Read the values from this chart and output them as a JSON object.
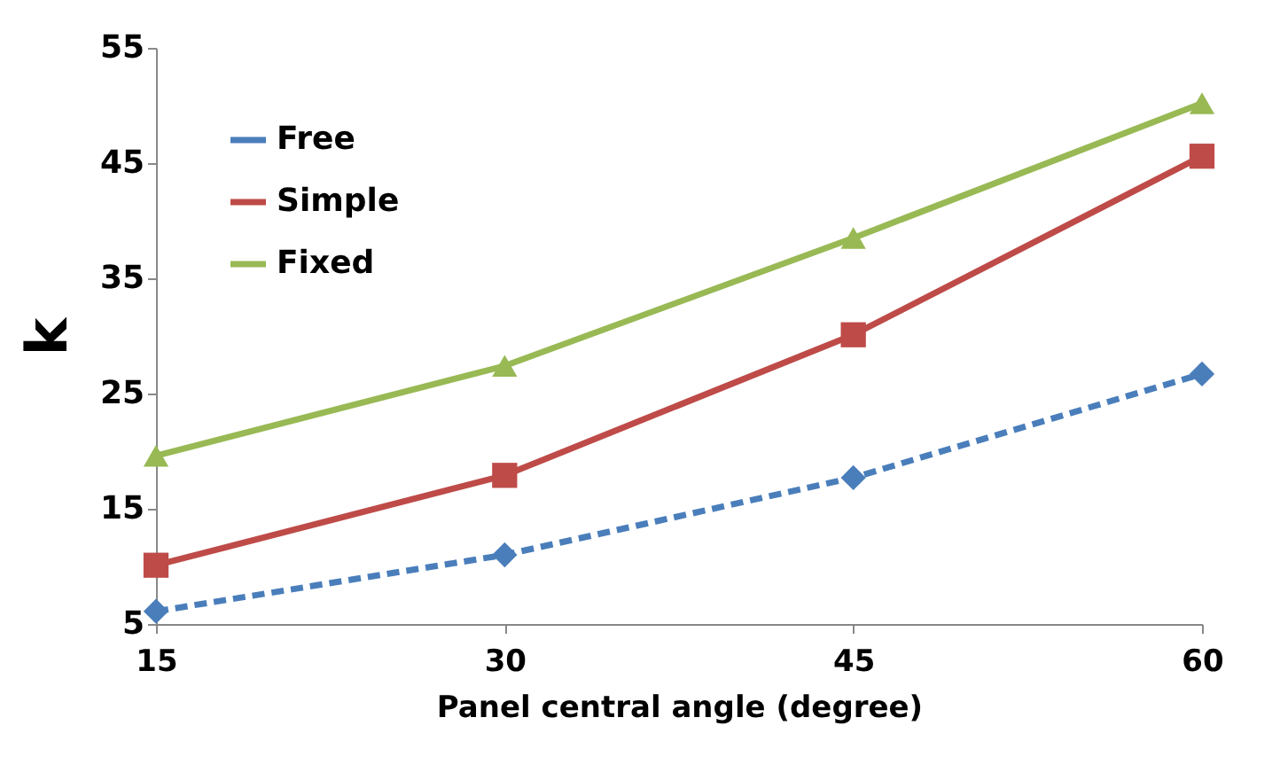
{
  "chart_data": {
    "type": "line",
    "xlabel": "Panel central angle (degree)",
    "ylabel": "k",
    "x": [
      15,
      30,
      45,
      60
    ],
    "series": [
      {
        "name": "Free",
        "color": "#4a7ebb",
        "values": [
          6.1,
          11.0,
          17.7,
          26.7
        ],
        "marker": "diamond",
        "line_style": "dashed"
      },
      {
        "name": "Simple",
        "color": "#be4b48",
        "values": [
          10.1,
          17.9,
          30.1,
          45.6
        ],
        "marker": "square",
        "line_style": "solid"
      },
      {
        "name": "Fixed",
        "color": "#98b954",
        "values": [
          19.6,
          27.4,
          38.5,
          50.2
        ],
        "marker": "triangle",
        "line_style": "solid"
      }
    ],
    "xlim": [
      15,
      60
    ],
    "xticks": [
      15,
      30,
      45,
      60
    ],
    "ylim": [
      5,
      55
    ],
    "yticks": [
      5,
      15,
      25,
      35,
      45,
      55
    ],
    "grid": false,
    "legend": "top left"
  }
}
